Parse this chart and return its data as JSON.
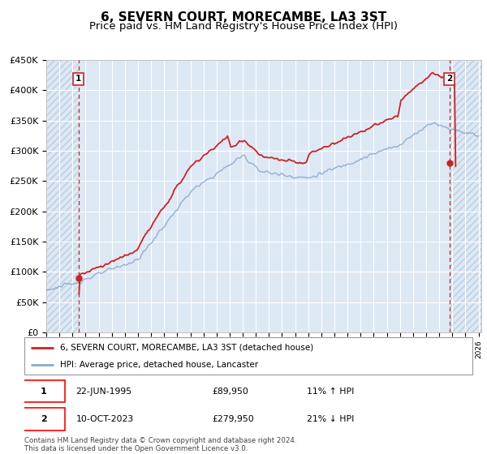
{
  "title": "6, SEVERN COURT, MORECAMBE, LA3 3ST",
  "subtitle": "Price paid vs. HM Land Registry's House Price Index (HPI)",
  "ylim": [
    0,
    450000
  ],
  "yticks": [
    0,
    50000,
    100000,
    150000,
    200000,
    250000,
    300000,
    350000,
    400000,
    450000
  ],
  "ytick_labels": [
    "£0",
    "£50K",
    "£100K",
    "£150K",
    "£200K",
    "£250K",
    "£300K",
    "£350K",
    "£400K",
    "£450K"
  ],
  "x_start_year": 1993,
  "x_end_year": 2026,
  "t1": 1995.47,
  "t2": 2023.77,
  "purchase1_price": 89950,
  "purchase2_price": 279950,
  "legend_line1": "6, SEVERN COURT, MORECAMBE, LA3 3ST (detached house)",
  "legend_line2": "HPI: Average price, detached house, Lancaster",
  "annotation1_date": "22-JUN-1995",
  "annotation1_price": "£89,950",
  "annotation1_hpi": "11% ↑ HPI",
  "annotation2_date": "10-OCT-2023",
  "annotation2_price": "£279,950",
  "annotation2_hpi": "21% ↓ HPI",
  "footer": "Contains HM Land Registry data © Crown copyright and database right 2024.\nThis data is licensed under the Open Government Licence v3.0.",
  "bg_color": "#dde8f5",
  "hatch_color": "#b8cfe0",
  "grid_color": "#ffffff",
  "red_line_color": "#cc2222",
  "blue_line_color": "#88aacc",
  "marker_color": "#cc2222",
  "vline_color": "#cc2222",
  "title_fontsize": 11,
  "subtitle_fontsize": 9.5,
  "tick_fontsize": 8
}
